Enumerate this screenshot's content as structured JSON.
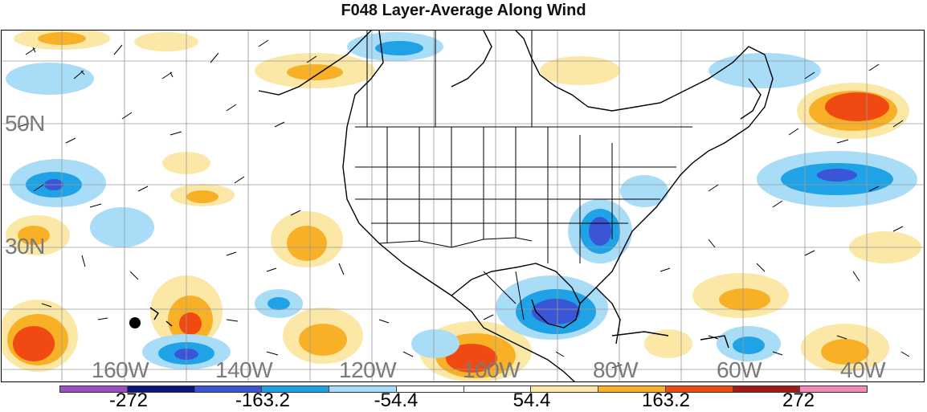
{
  "title": "F048 Layer-Average Along Wind",
  "map": {
    "lat_labels": [
      "50N",
      "30N"
    ],
    "lon_labels": [
      "160W",
      "140W",
      "120W",
      "100W",
      "80W",
      "60W",
      "40W"
    ],
    "marker": "black-dot-marker"
  },
  "colorbar": {
    "colors": [
      "#9a4fc4",
      "#0a1580",
      "#3a56d6",
      "#1fa3e6",
      "#a9dcf6",
      "#ffffff",
      "#ffffff",
      "#fbe8a6",
      "#f8b127",
      "#f04a12",
      "#a31a18",
      "#f08bb7"
    ],
    "labels": [
      "-272",
      "-163.2",
      "-54.4",
      "54.4",
      "163.2",
      "272"
    ]
  },
  "legend_colors": {
    "strong_neg": "#3a56d6",
    "mid_neg": "#1fa3e6",
    "weak_neg": "#a9dcf6",
    "weak_pos": "#fbe8a6",
    "mid_pos": "#f8b127",
    "strong_pos": "#f04a12"
  }
}
